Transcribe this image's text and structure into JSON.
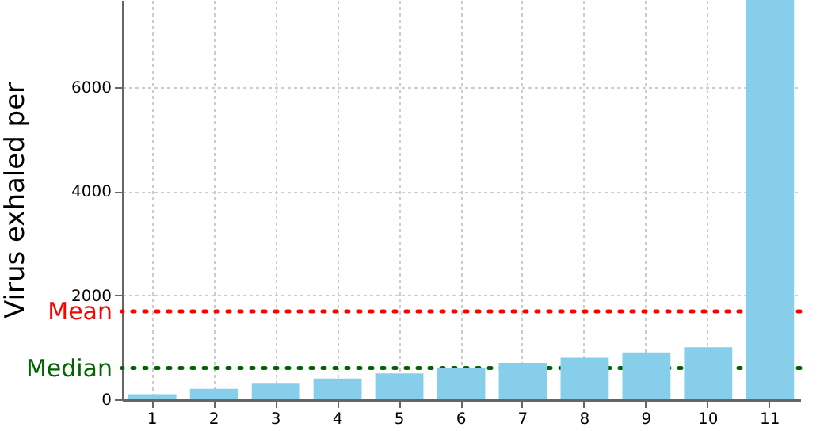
{
  "chart_data": {
    "type": "bar",
    "ylabel": "Virus exhaled per",
    "categories": [
      "1",
      "2",
      "3",
      "4",
      "5",
      "6",
      "7",
      "8",
      "9",
      "10",
      "11"
    ],
    "values": [
      100,
      200,
      300,
      400,
      500,
      600,
      700,
      800,
      900,
      1000,
      7670
    ],
    "color": "#87ceeb",
    "ylim": [
      0,
      7670
    ],
    "yticks": [
      0,
      2000,
      4000,
      6000
    ],
    "grid": true,
    "ref_lines": [
      {
        "axis": "y",
        "value": 1690,
        "label": "Mean",
        "color": "#ff0000",
        "line_style": "dotted"
      },
      {
        "axis": "y",
        "value": 600,
        "label": "Median",
        "color": "#006400",
        "line_style": "dotted"
      }
    ]
  }
}
